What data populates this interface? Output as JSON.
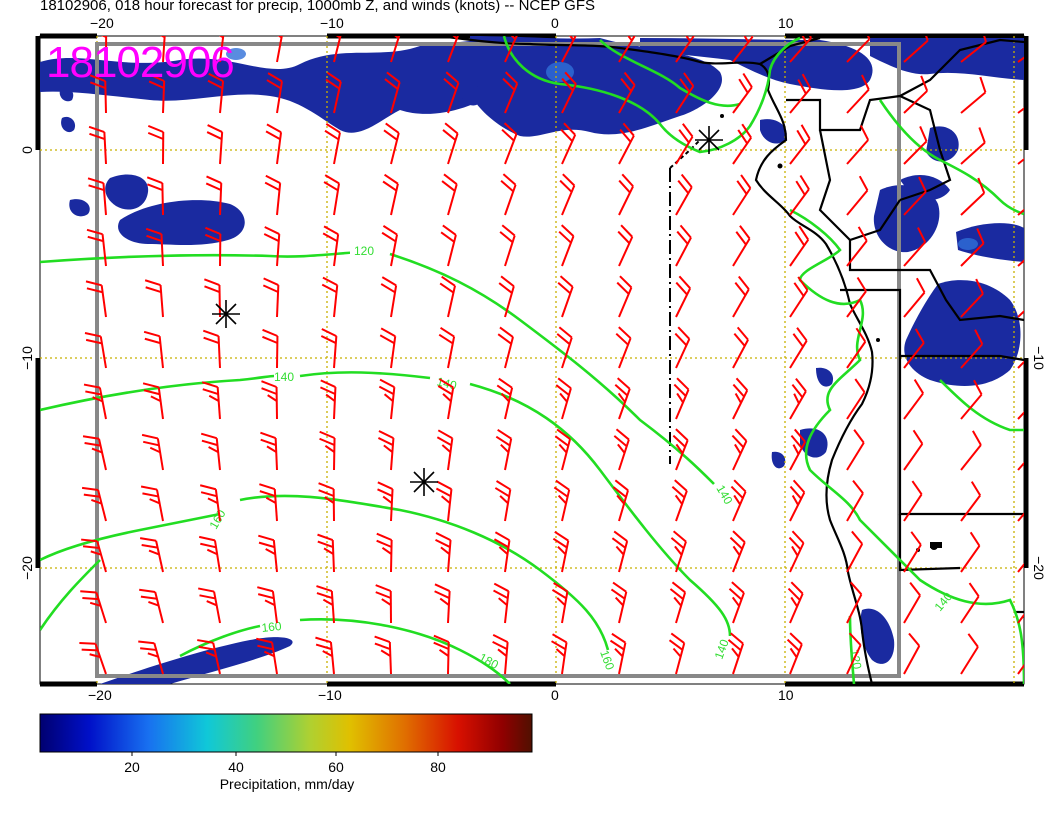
{
  "title": "18102906, 018 hour forecast for precip, 1000mb Z, and winds (knots) -- NCEP GFS",
  "stamp": "18102906",
  "axes": {
    "top": [
      "−20",
      "−10",
      "0",
      "10"
    ],
    "bottom": [
      "−20",
      "−10",
      "0",
      "10"
    ],
    "left": [
      "0",
      "−10",
      "−20"
    ],
    "right": [
      "−10",
      "−20"
    ]
  },
  "contour_labels": [
    "120",
    "140",
    "140",
    "140",
    "160",
    "160",
    "180",
    "160",
    "140",
    "140",
    "120"
  ],
  "colorbar": {
    "ticks": [
      "20",
      "40",
      "60",
      "80"
    ],
    "label": "Precipitation, mm/day",
    "colors": [
      "#000070",
      "#0010c8",
      "#1870f0",
      "#10c8d8",
      "#40d080",
      "#b0d030",
      "#e0c000",
      "#e07000",
      "#d81000",
      "#900000",
      "#501000"
    ]
  },
  "colors": {
    "wind": "#ff0000",
    "contour": "#22dd22",
    "precip": "#1a2aa0",
    "grid": "#c8b000"
  }
}
